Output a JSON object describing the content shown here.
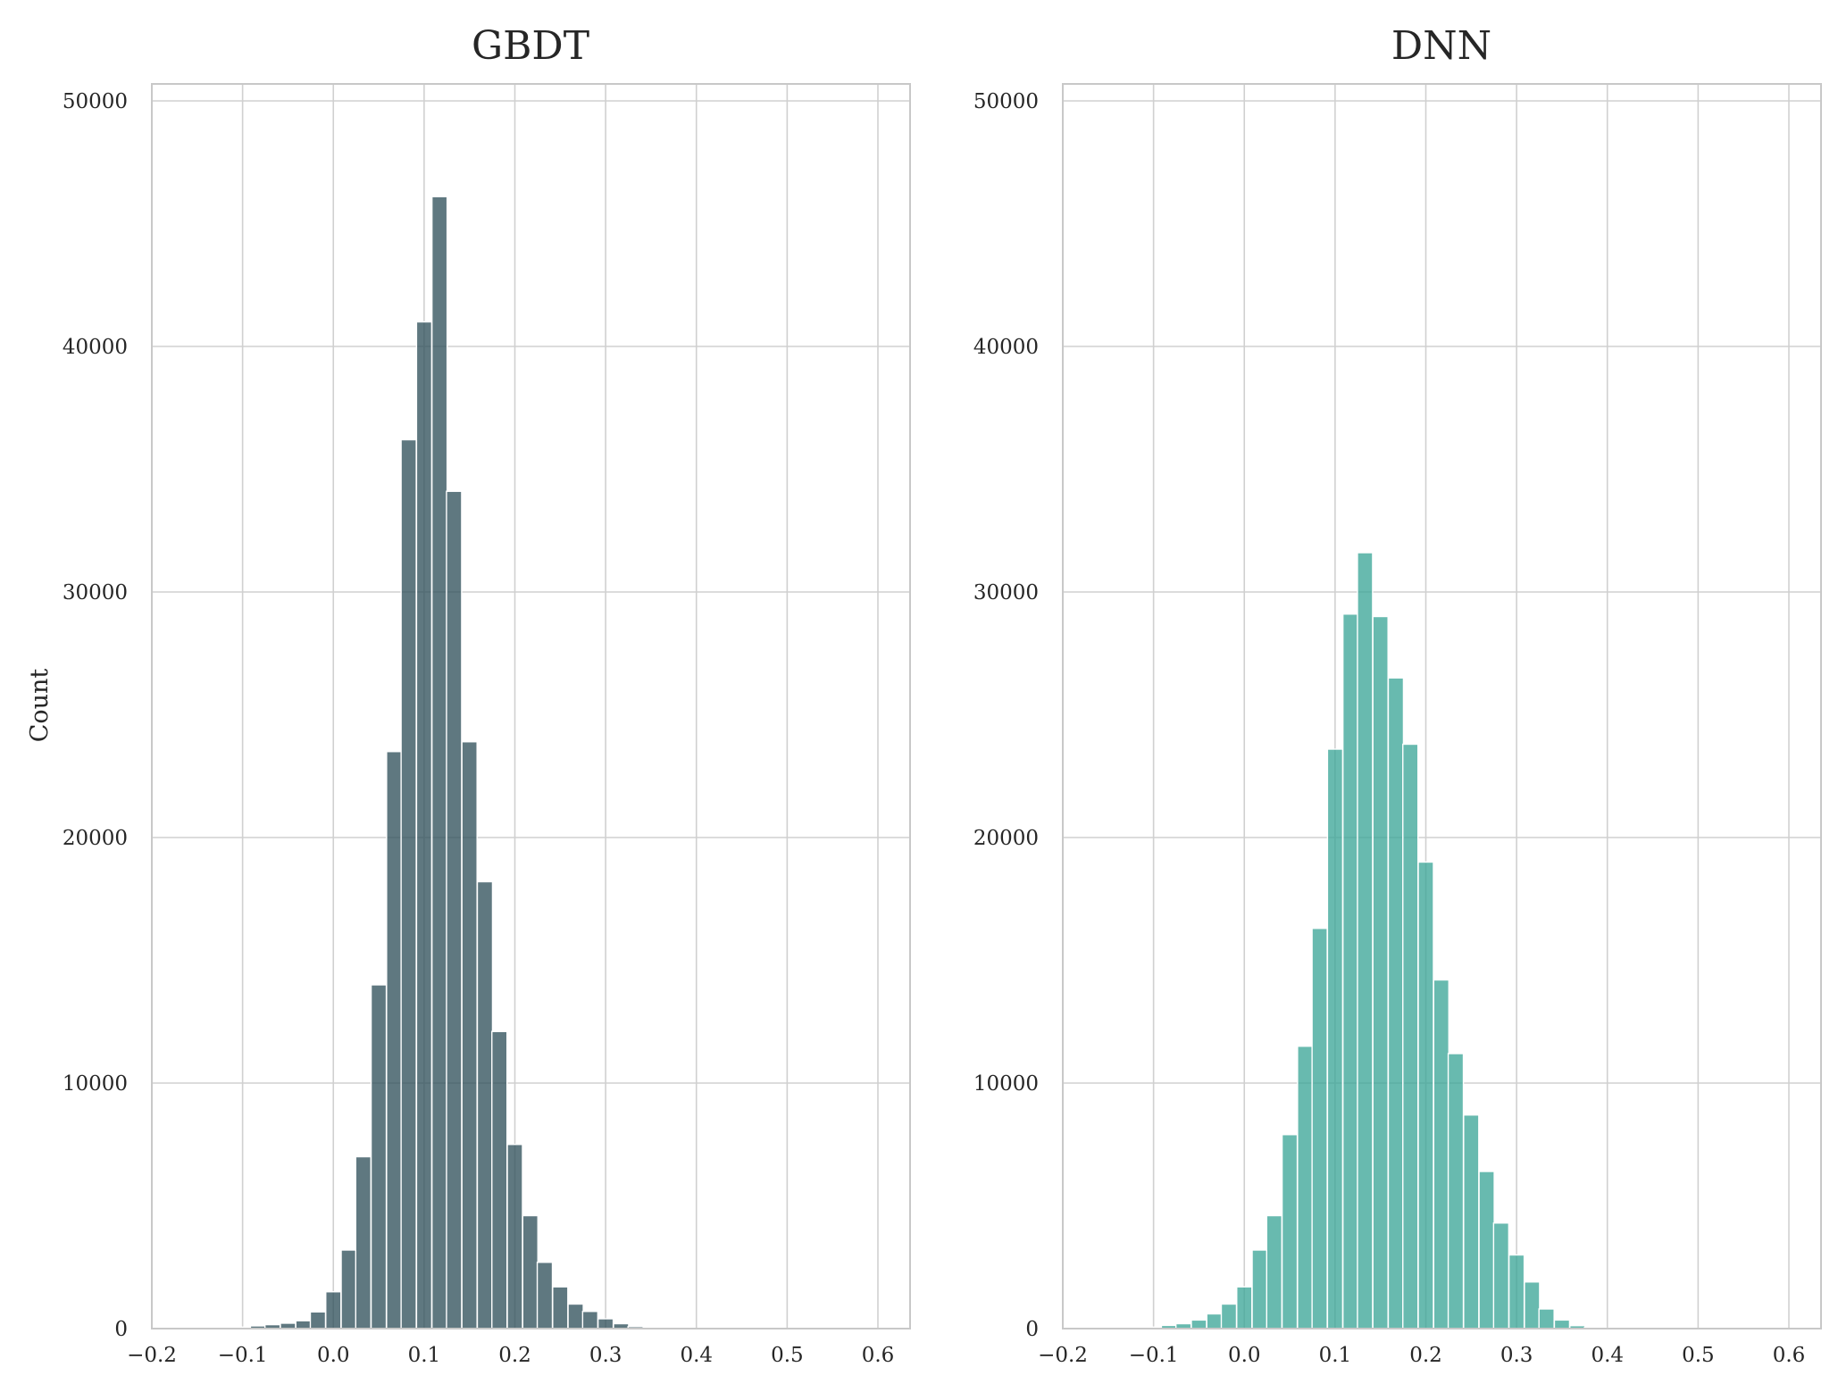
{
  "figure": {
    "ylabel": "Count",
    "grid": true,
    "colors": {
      "gbdt": "#2f4f5a",
      "dnn": "#3aa597",
      "grid": "#d0d0d0",
      "spine": "#c8c8c8"
    }
  },
  "chart_data": [
    {
      "type": "bar",
      "title": "GBDT",
      "xlabel": "",
      "ylabel": "Count",
      "xlim": [
        -0.2,
        0.6
      ],
      "ylim": [
        0,
        50000
      ],
      "xticks": [
        "−0.2",
        "−0.1",
        "0.0",
        "0.1",
        "0.2",
        "0.3",
        "0.4",
        "0.5",
        "0.6"
      ],
      "yticks": [
        "0",
        "10000",
        "20000",
        "30000",
        "40000",
        "50000"
      ],
      "bin_width": 0.0167,
      "bin_centers": [
        -0.183,
        -0.167,
        -0.15,
        -0.133,
        -0.117,
        -0.1,
        -0.083,
        -0.067,
        -0.05,
        -0.033,
        -0.017,
        0.0,
        0.017,
        0.033,
        0.05,
        0.067,
        0.083,
        0.1,
        0.117,
        0.133,
        0.15,
        0.167,
        0.183,
        0.2,
        0.217,
        0.233,
        0.25,
        0.267,
        0.283,
        0.3,
        0.317,
        0.333,
        0.35,
        0.367,
        0.383,
        0.4
      ],
      "values": [
        5,
        10,
        15,
        25,
        40,
        60,
        110,
        160,
        220,
        320,
        680,
        1500,
        3200,
        7000,
        14000,
        23500,
        36200,
        41000,
        46100,
        34100,
        23900,
        18200,
        12100,
        7500,
        4600,
        2700,
        1700,
        1000,
        700,
        400,
        200,
        80,
        30,
        15,
        8,
        3
      ]
    },
    {
      "type": "bar",
      "title": "DNN",
      "xlabel": "",
      "ylabel": "",
      "xlim": [
        -0.2,
        0.6
      ],
      "ylim": [
        0,
        50000
      ],
      "xticks": [
        "−0.2",
        "−0.1",
        "0.0",
        "0.1",
        "0.2",
        "0.3",
        "0.4",
        "0.5",
        "0.6"
      ],
      "yticks": [
        "0",
        "10000",
        "20000",
        "30000",
        "40000",
        "50000"
      ],
      "bin_width": 0.0167,
      "bin_centers": [
        -0.15,
        -0.133,
        -0.117,
        -0.1,
        -0.083,
        -0.067,
        -0.05,
        -0.033,
        -0.017,
        0.0,
        0.017,
        0.033,
        0.05,
        0.067,
        0.083,
        0.1,
        0.117,
        0.133,
        0.15,
        0.167,
        0.183,
        0.2,
        0.217,
        0.233,
        0.25,
        0.267,
        0.283,
        0.3,
        0.317,
        0.333,
        0.35,
        0.367,
        0.383,
        0.4,
        0.417
      ],
      "values": [
        10,
        20,
        30,
        60,
        130,
        200,
        350,
        600,
        1000,
        1700,
        3200,
        4600,
        7900,
        11500,
        16300,
        23600,
        29100,
        31600,
        29000,
        26500,
        23800,
        19000,
        14200,
        11200,
        8700,
        6400,
        4300,
        3000,
        1900,
        800,
        350,
        120,
        40,
        15,
        5
      ]
    }
  ]
}
